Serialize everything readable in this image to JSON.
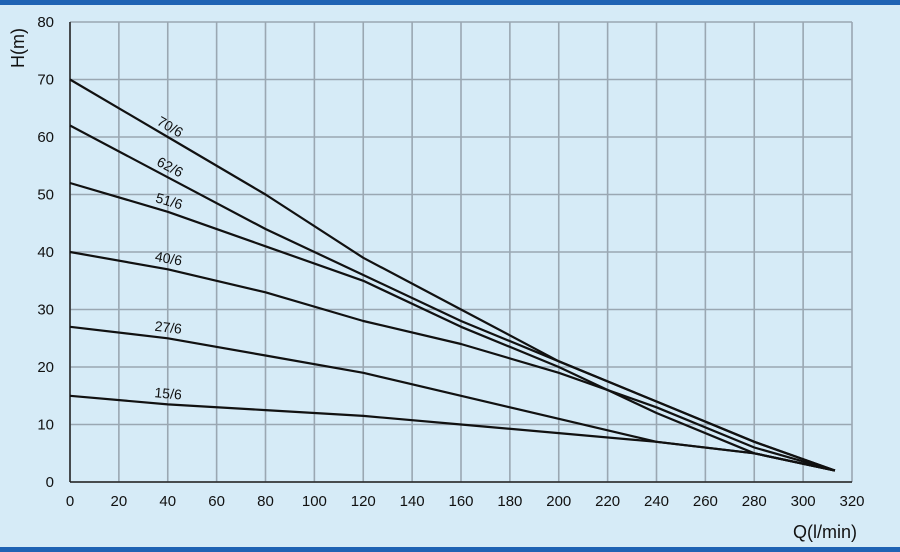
{
  "colors": {
    "background": "#d6ebf7",
    "frame_bar": "#1f63b4",
    "grid": "#9aa7b2",
    "curve": "#111111"
  },
  "chart_data": {
    "type": "line",
    "title": "",
    "xlabel": "Q(l/min)",
    "ylabel": "H(m)",
    "xlim": [
      0,
      320
    ],
    "ylim": [
      0,
      80
    ],
    "xticks": [
      0,
      20,
      40,
      60,
      80,
      100,
      120,
      140,
      160,
      180,
      200,
      220,
      240,
      260,
      280,
      300,
      320
    ],
    "yticks": [
      0,
      10,
      20,
      30,
      40,
      50,
      60,
      70,
      80
    ],
    "grid": true,
    "legend": "none (curves labeled inline)",
    "series": [
      {
        "name": "70/6",
        "x": [
          0,
          40,
          80,
          120,
          160,
          200,
          240,
          280,
          313
        ],
        "y": [
          70,
          60,
          50,
          39,
          30,
          21,
          14,
          7,
          2
        ]
      },
      {
        "name": "62/6",
        "x": [
          0,
          40,
          80,
          120,
          160,
          200,
          240,
          280,
          313
        ],
        "y": [
          62,
          53,
          44,
          36,
          28,
          21,
          14,
          7,
          2
        ]
      },
      {
        "name": "51/6",
        "x": [
          0,
          40,
          80,
          120,
          160,
          200,
          240,
          280,
          313
        ],
        "y": [
          52,
          47,
          41,
          35,
          27,
          20,
          12,
          5,
          2
        ]
      },
      {
        "name": "40/6",
        "x": [
          0,
          40,
          80,
          120,
          160,
          200,
          240,
          280,
          313
        ],
        "y": [
          40,
          37,
          33,
          28,
          24,
          19,
          13,
          6,
          2
        ]
      },
      {
        "name": "27/6",
        "x": [
          0,
          40,
          80,
          120,
          160,
          200,
          240,
          280,
          313
        ],
        "y": [
          27,
          25,
          22,
          19,
          15,
          11,
          7,
          5,
          2
        ]
      },
      {
        "name": "15/6",
        "x": [
          0,
          40,
          80,
          120,
          160,
          200,
          240,
          280,
          313
        ],
        "y": [
          15,
          13.5,
          12.5,
          11.5,
          10,
          8.5,
          7,
          5,
          2
        ]
      }
    ]
  }
}
